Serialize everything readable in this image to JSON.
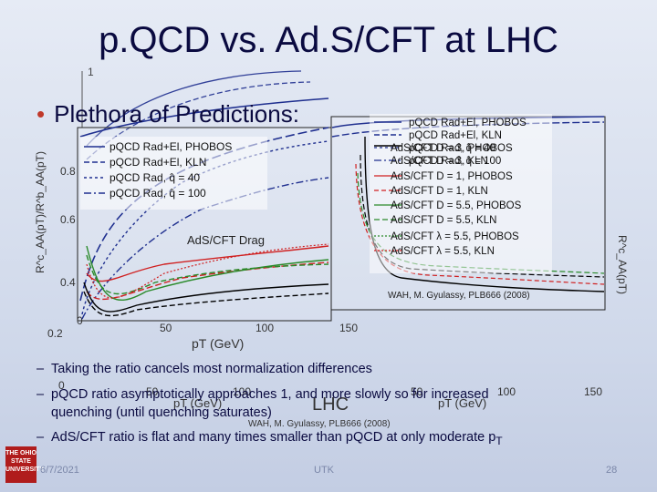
{
  "slide": {
    "title": "p.QCD vs. Ad.S/CFT at LHC",
    "bullet": "Plethora of Predictions:",
    "subbullets": [
      "Taking the ratio cancels most normalization differences",
      "pQCD ratio asymptotically approaches 1, and more slowly so for increased",
      "quenching (until quenching saturates)",
      "AdS/CFT ratio is flat and many times smaller than pQCD at only moderate p"
    ],
    "subscript_T": "T",
    "date": "6/7/2021",
    "center": "UTK",
    "page": "28",
    "logo_text": "THE OHIO STATE UNIVERSITY"
  },
  "left_plot": {
    "ylabel": "R^c_AA(pT)/R^b_AA(pT)",
    "xlabel": "pT (GeV)",
    "x_ticks": [
      "0",
      "50",
      "100"
    ],
    "y_ticks": [
      "1",
      "0.8",
      "0.6",
      "0.4",
      "0.2"
    ],
    "drag_label": "AdS/CFT Drag",
    "legend": [
      "pQCD Rad+El, PHOBOS",
      "pQCD Rad+El, KLN",
      "pQCD Rad, q̂ = 40",
      "pQCD Rad, q̂ = 100"
    ]
  },
  "right_plot": {
    "ylabel": "R^c_AA(pT)",
    "xlabel": "pT (GeV)",
    "x_ticks": [
      "50",
      "100",
      "150"
    ],
    "legend": [
      "pQCD Rad+El, PHOBOS",
      "pQCD Rad+El, KLN",
      "pQCD Rad, q̂ = 40",
      "pQCD Rad, q̂ = 100",
      "AdS/CFT D = 3, PHOBOS",
      "AdS/CFT D = 3, KLN",
      "AdS/CFT D = 1, PHOBOS",
      "AdS/CFT D = 1, KLN",
      "AdS/CFT D = 5.5, PHOBOS",
      "AdS/CFT D = 5.5, KLN",
      "AdS/CFT λ = 5.5, PHOBOS",
      "AdS/CFT λ = 5.5, KLN"
    ],
    "reference": "WAH, M. Gyulassy, PLB666 (2008)"
  },
  "bottom_ghost": {
    "xlabel_left": "pT (GeV)",
    "x_ticks_left": [
      "0",
      "50",
      "100"
    ],
    "lhc_label": "LHC",
    "xlabel_right": "pT (GeV)",
    "x_ticks_right": [
      "50",
      "100",
      "150"
    ],
    "reference": "WAH, M. Gyulassy, PLB666 (2008)"
  },
  "colors": {
    "title": "#0a0a40",
    "blue": "#1f2f8f",
    "red": "#d02020",
    "green": "#2a8a2a",
    "black": "#000000"
  }
}
